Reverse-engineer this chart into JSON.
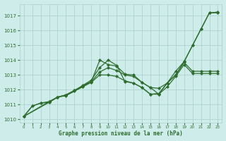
{
  "xlabel": "Graphe pression niveau de la mer (hPa)",
  "xlim": [
    -0.5,
    23.5
  ],
  "ylim": [
    1009.8,
    1017.8
  ],
  "yticks": [
    1010,
    1011,
    1012,
    1013,
    1014,
    1015,
    1016,
    1017
  ],
  "xticks": [
    0,
    1,
    2,
    3,
    4,
    5,
    6,
    7,
    8,
    9,
    10,
    11,
    12,
    13,
    14,
    15,
    16,
    17,
    18,
    19,
    20,
    21,
    22,
    23
  ],
  "bg_color": "#ceecea",
  "grid_color": "#aacfcc",
  "line_color": "#2d6e2d",
  "lines": [
    {
      "x": [
        0,
        1,
        2,
        3,
        4,
        5,
        6,
        7,
        8,
        9,
        10,
        11,
        12,
        13,
        14,
        15,
        16,
        17,
        18,
        19,
        20,
        21,
        22,
        23
      ],
      "y": [
        1010.2,
        1010.9,
        1011.1,
        1011.15,
        1011.5,
        1011.65,
        1011.95,
        1012.25,
        1012.55,
        1014.0,
        1013.7,
        1013.6,
        1013.05,
        1013.0,
        1012.5,
        1012.15,
        1012.1,
        1012.45,
        1013.25,
        1013.9,
        1015.0,
        1016.1,
        1017.2,
        1017.2
      ]
    },
    {
      "x": [
        0,
        3,
        4,
        5,
        6,
        7,
        8,
        9,
        10,
        11,
        12,
        13,
        14,
        15,
        16,
        17,
        18,
        19,
        20,
        21,
        22,
        23
      ],
      "y": [
        1010.2,
        1011.2,
        1011.5,
        1011.65,
        1011.95,
        1012.3,
        1012.65,
        1013.5,
        1014.0,
        1013.65,
        1012.55,
        1012.45,
        1012.15,
        1011.7,
        1011.75,
        1012.45,
        1013.0,
        1013.9,
        1015.0,
        1016.1,
        1017.2,
        1017.25
      ]
    },
    {
      "x": [
        0,
        3,
        4,
        5,
        6,
        7,
        8,
        9,
        10,
        11,
        12,
        13,
        14,
        15,
        16,
        17,
        18,
        19,
        20,
        21,
        22,
        23
      ],
      "y": [
        1010.2,
        1011.15,
        1011.5,
        1011.65,
        1011.95,
        1012.25,
        1012.55,
        1013.2,
        1013.5,
        1013.3,
        1013.0,
        1012.9,
        1012.5,
        1012.15,
        1011.7,
        1012.45,
        1013.0,
        1013.85,
        1013.25,
        1013.25,
        1013.25,
        1013.25
      ]
    },
    {
      "x": [
        0,
        1,
        2,
        3,
        4,
        5,
        6,
        7,
        8,
        9,
        10,
        11,
        12,
        13,
        14,
        15,
        16,
        17,
        18,
        19,
        20,
        21,
        22,
        23
      ],
      "y": [
        1010.2,
        1010.9,
        1011.1,
        1011.2,
        1011.5,
        1011.6,
        1011.9,
        1012.2,
        1012.5,
        1013.0,
        1013.0,
        1012.9,
        1012.6,
        1012.45,
        1012.15,
        1011.7,
        1011.7,
        1012.2,
        1012.9,
        1013.7,
        1013.1,
        1013.1,
        1013.1,
        1013.1
      ]
    }
  ],
  "font_color": "#2d6e2d",
  "marker": "D",
  "markersize": 2.0,
  "linewidth": 0.9,
  "tick_fontsize": 5.0,
  "xlabel_fontsize": 5.5
}
